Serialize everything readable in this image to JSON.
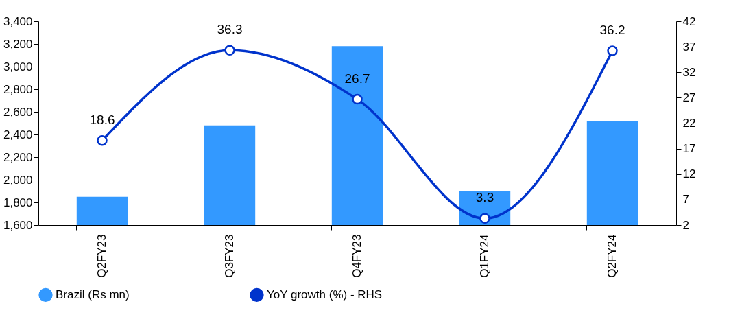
{
  "chart_data": {
    "type": "bar",
    "categories": [
      "Q2FY23",
      "Q3FY23",
      "Q4FY23",
      "Q1FY24",
      "Q2FY24"
    ],
    "series": [
      {
        "name": "Brazil (Rs mn)",
        "color": "#3399ff",
        "values": [
          1850,
          2480,
          3180,
          1900,
          2520
        ]
      },
      {
        "name": "YoY growth (%) - RHS",
        "type": "line",
        "axis": "y2",
        "color": "#0033cc",
        "values": [
          18.6,
          36.3,
          26.7,
          3.3,
          36.2
        ],
        "value_labels": [
          "18.6",
          "36.3",
          "26.7",
          "3.3",
          "36.2"
        ]
      }
    ],
    "ylim": [
      1600,
      3400
    ],
    "yticks": [
      {
        "value": 1600,
        "label": "1,600"
      },
      {
        "value": 1800,
        "label": "1,800"
      },
      {
        "value": 2000,
        "label": "2,000"
      },
      {
        "value": 2200,
        "label": "2,200"
      },
      {
        "value": 2400,
        "label": "2,400"
      },
      {
        "value": 2600,
        "label": "2,600"
      },
      {
        "value": 2800,
        "label": "2,800"
      },
      {
        "value": 3000,
        "label": "3,000"
      },
      {
        "value": 3200,
        "label": "3,200"
      },
      {
        "value": 3400,
        "label": "3,400"
      }
    ],
    "y2lim": [
      2,
      42
    ],
    "y2ticks": [
      2,
      7,
      12,
      17,
      22,
      27,
      32,
      37,
      42
    ],
    "legend": "bottom",
    "marker": "circle",
    "line_style": "solid"
  }
}
